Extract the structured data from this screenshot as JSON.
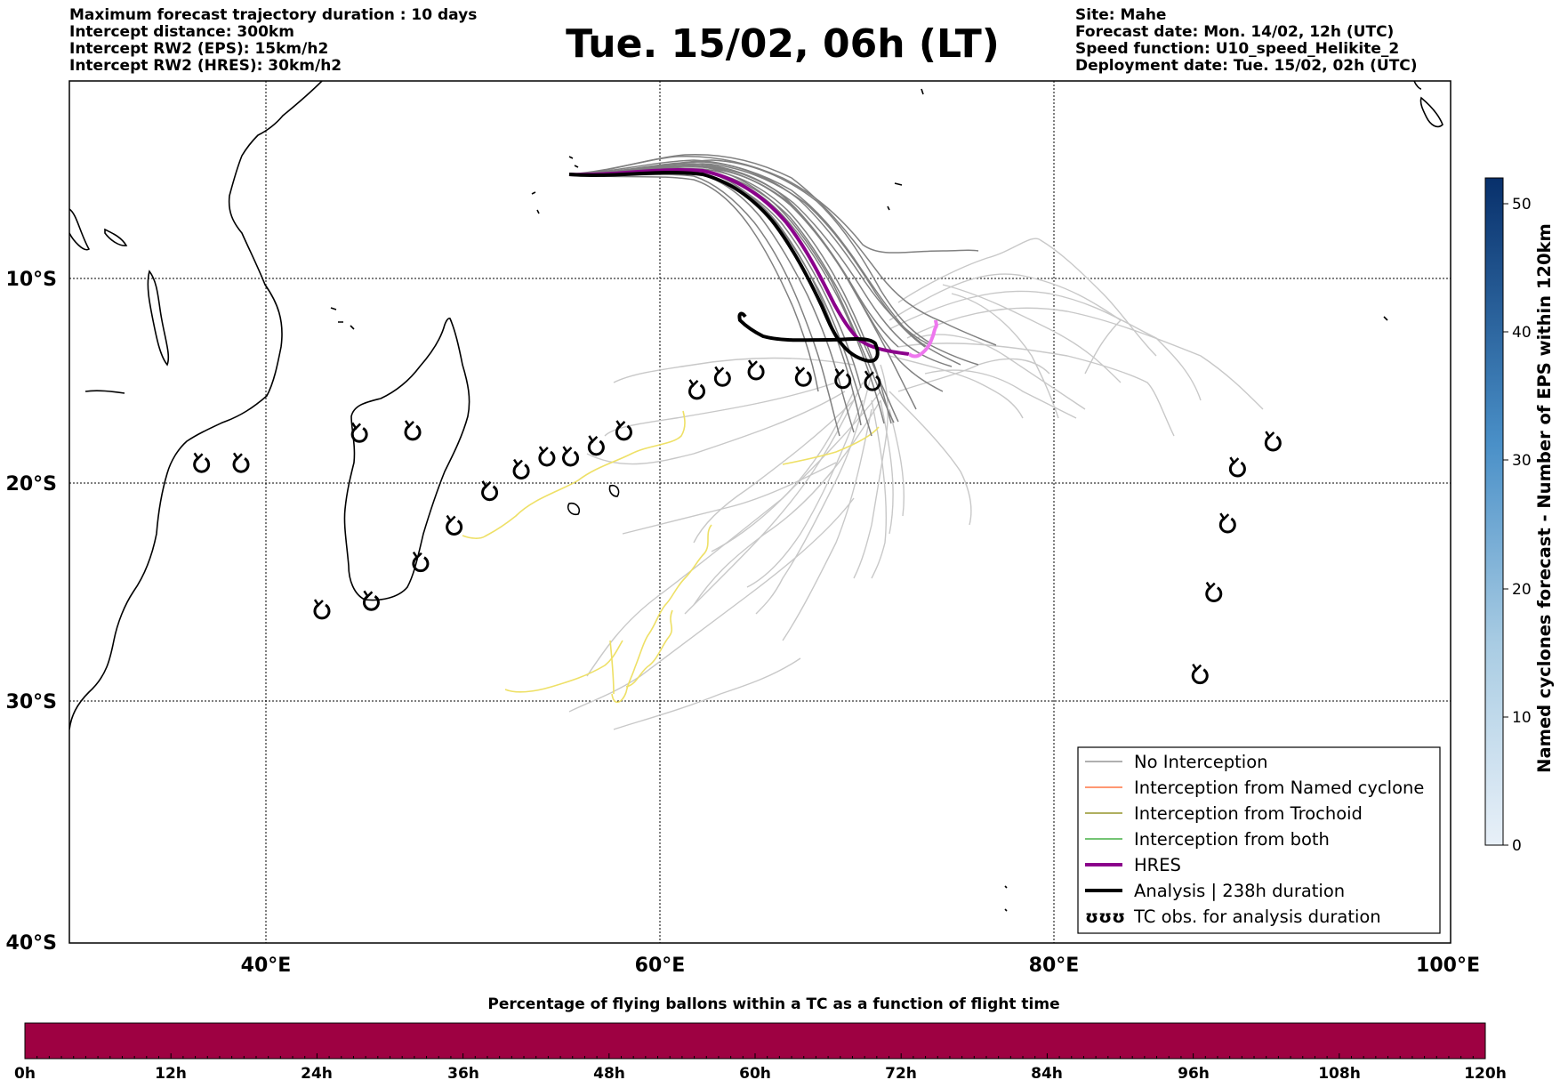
{
  "header": {
    "left": [
      "Maximum forecast trajectory duration : 10 days",
      "Intercept distance: 300km",
      "Intercept RW2 (EPS):  15km/h2",
      "Intercept RW2 (HRES): 30km/h2"
    ],
    "title": "Tue. 15/02, 06h (LT)",
    "right": [
      "Site: Mahe",
      "Forecast date: Mon. 14/02, 12h (UTC)",
      "Speed function: U10_speed_Helikite_2",
      "Deployment date: Tue. 15/02, 02h (UTC)"
    ]
  },
  "map": {
    "extent": {
      "lon": [
        30,
        100
      ],
      "lat": [
        -40,
        0
      ]
    },
    "lat_ticks": [
      "10°S",
      "20°S",
      "30°S",
      "40°S"
    ],
    "lon_ticks": [
      "40°E",
      "60°E",
      "80°E",
      "100°E"
    ],
    "colors": {
      "coast": "#000000",
      "no_interception": "#808080",
      "named_cyclone": "#ff5a1f",
      "trochoid": "#7f7f00",
      "both": "#22a022",
      "hres": "#8b008b",
      "analysis": "#000000",
      "hres_tail": "#ee77ee",
      "yellow_track": "#eee066",
      "light_track": "#c8c8c8"
    }
  },
  "legend": {
    "items": [
      {
        "label": "No Interception",
        "color": "#808080",
        "width": 1.2
      },
      {
        "label": "Interception from Named cyclone",
        "color": "#ff5a1f",
        "width": 1.2
      },
      {
        "label": "Interception from Trochoid",
        "color": "#7f7f00",
        "width": 1.2
      },
      {
        "label": "Interception from both",
        "color": "#22a022",
        "width": 1.2
      },
      {
        "label": "HRES",
        "color": "#8b008b",
        "width": 4
      },
      {
        "label": "Analysis | 238h duration",
        "color": "#000000",
        "width": 4
      },
      {
        "label": "TC obs. for analysis duration",
        "symbol": "ʊʊʊ"
      }
    ]
  },
  "colorbar_right": {
    "label": "Named cyclones forecast - Number of EPS within 120km",
    "ticks": [
      "0",
      "10",
      "20",
      "30",
      "40",
      "50"
    ],
    "min": 0,
    "max": 52,
    "color_low": "#e8f0f8",
    "color_high": "#08306b"
  },
  "colorbar_bottom": {
    "caption": "Percentage of flying ballons within a TC as a function of flight time",
    "ticks": [
      "0h",
      "12h",
      "24h",
      "36h",
      "48h",
      "60h",
      "72h",
      "84h",
      "96h",
      "108h",
      "120h"
    ],
    "color": "#9e0142"
  },
  "tc_obs": [
    {
      "lon": 36.7,
      "lat": -17.8
    },
    {
      "lon": 38.7,
      "lat": -17.8
    },
    {
      "lon": 44.7,
      "lat": -16.4
    },
    {
      "lon": 47.4,
      "lat": -16.3
    },
    {
      "lon": 49.5,
      "lat": -20.7
    },
    {
      "lon": 51.3,
      "lat": -19.1
    },
    {
      "lon": 52.9,
      "lat": -18.1
    },
    {
      "lon": 54.2,
      "lat": -17.5
    },
    {
      "lon": 55.4,
      "lat": -17.5
    },
    {
      "lon": 56.7,
      "lat": -17.0
    },
    {
      "lon": 58.1,
      "lat": -16.3
    },
    {
      "lon": 61.8,
      "lat": -14.4
    },
    {
      "lon": 63.1,
      "lat": -13.8
    },
    {
      "lon": 64.8,
      "lat": -13.5
    },
    {
      "lon": 67.2,
      "lat": -13.8
    },
    {
      "lon": 69.2,
      "lat": -13.9
    },
    {
      "lon": 70.7,
      "lat": -14.0
    },
    {
      "lon": 47.8,
      "lat": -22.4
    },
    {
      "lon": 42.8,
      "lat": -24.6
    },
    {
      "lon": 45.3,
      "lat": -24.2
    },
    {
      "lon": 91.0,
      "lat": -16.8
    },
    {
      "lon": 89.2,
      "lat": -18.0
    },
    {
      "lon": 88.7,
      "lat": -20.6
    },
    {
      "lon": 88.0,
      "lat": -23.8
    },
    {
      "lon": 87.3,
      "lat": -27.6
    }
  ]
}
